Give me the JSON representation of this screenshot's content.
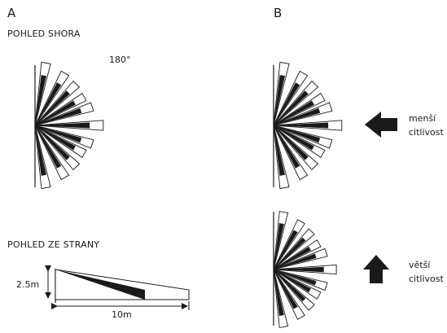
{
  "panel_a": {
    "letter": "A",
    "top_view_caption": "POHLED SHORA",
    "angle_label": "180°",
    "side_view_caption": "POHLED ZE STRANY",
    "height_label": "2.5m",
    "distance_label": "10m"
  },
  "panel_b": {
    "letter": "B",
    "lower_sensitivity": [
      "menší",
      "citlivost"
    ],
    "higher_sensitivity": [
      "větší",
      "citlivost"
    ]
  }
}
